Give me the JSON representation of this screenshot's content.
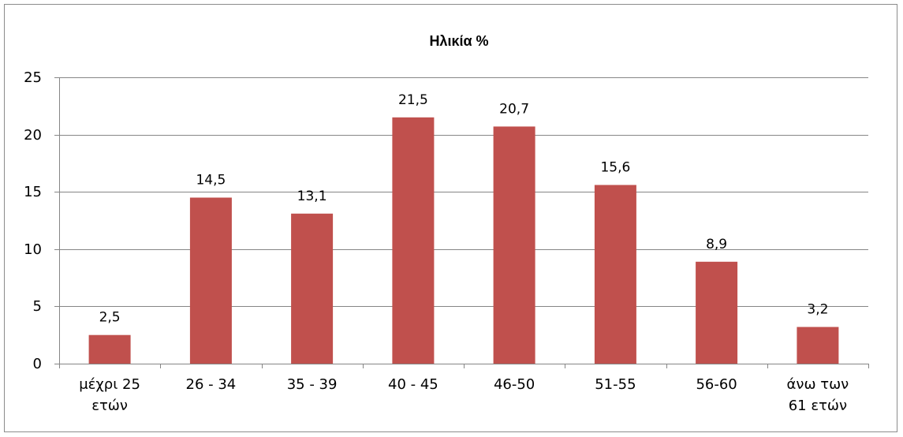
{
  "chart_data": {
    "type": "bar",
    "title": "Ηλικία %",
    "categories": [
      [
        "μέχρι 25",
        "ετών"
      ],
      [
        "26 - 34"
      ],
      [
        "35 - 39"
      ],
      [
        "40 - 45"
      ],
      [
        "46-50"
      ],
      [
        "51-55"
      ],
      [
        "56-60"
      ],
      [
        "άνω των",
        "61 ετών"
      ]
    ],
    "values": [
      2.5,
      14.5,
      13.1,
      21.5,
      20.7,
      15.6,
      8.9,
      3.2
    ],
    "data_labels": [
      "2,5",
      "14,5",
      "13,1",
      "21,5",
      "20,7",
      "15,6",
      "8,9",
      "3,2"
    ],
    "ylim": [
      0,
      25
    ],
    "yticks": [
      0,
      5,
      10,
      15,
      20,
      25
    ],
    "grid": true,
    "legend": "none",
    "colors": {
      "bar": "#C0504D",
      "grid": "#868686",
      "axis": "#868686"
    }
  }
}
